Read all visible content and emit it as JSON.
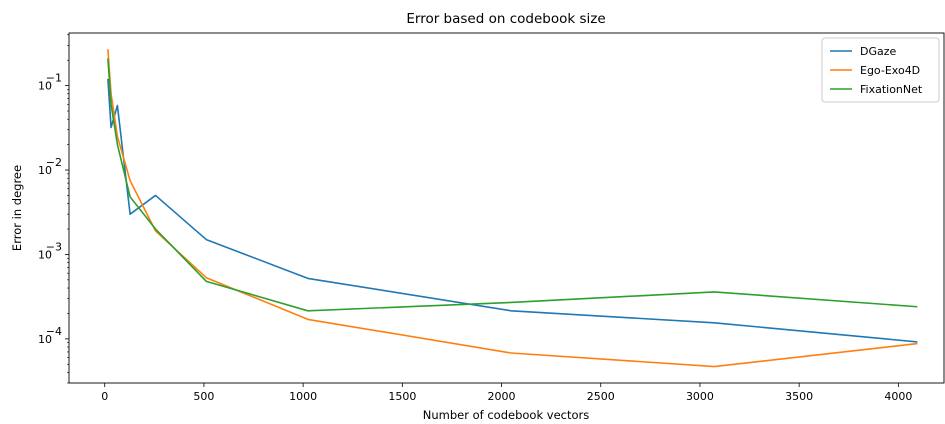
{
  "chart_data": {
    "type": "line",
    "title": "Error based on codebook size",
    "xlabel": "Number of codebook vectors",
    "ylabel": "Error in degree",
    "xlim": [
      -180,
      4230
    ],
    "ylim": [
      3e-05,
      0.42
    ],
    "yscale": "log",
    "xticks": [
      0,
      500,
      1000,
      1500,
      2000,
      2500,
      3000,
      3500,
      4000
    ],
    "xtick_labels": [
      "0",
      "500",
      "1000",
      "1500",
      "2000",
      "2500",
      "3000",
      "3500",
      "4000"
    ],
    "yticks": [
      0.0001,
      0.001,
      0.01,
      0.1
    ],
    "ytick_labels": [
      "10",
      "10",
      "10",
      "10"
    ],
    "ytick_exponents": [
      "−4",
      "−3",
      "−2",
      "−1"
    ],
    "grid": false,
    "legend": "top-right",
    "series": [
      {
        "name": "DGaze",
        "color": "#1f77b4",
        "x": [
          16,
          32,
          64,
          128,
          256,
          512,
          1024,
          2048,
          3072,
          4096
        ],
        "y": [
          0.12,
          0.032,
          0.058,
          0.003,
          0.005,
          0.0015,
          0.00052,
          0.000215,
          0.000155,
          9.2e-05
        ]
      },
      {
        "name": "Ego-Exo4D",
        "color": "#ff7f0e",
        "x": [
          16,
          32,
          64,
          128,
          256,
          512,
          1024,
          2048,
          3072,
          4096
        ],
        "y": [
          0.27,
          0.08,
          0.025,
          0.0075,
          0.0019,
          0.00053,
          0.00017,
          6.8e-05,
          4.7e-05,
          8.8e-05
        ]
      },
      {
        "name": "FixationNet",
        "color": "#2ca02c",
        "x": [
          16,
          32,
          64,
          128,
          256,
          512,
          1024,
          2048,
          3072,
          4096
        ],
        "y": [
          0.21,
          0.06,
          0.02,
          0.0048,
          0.002,
          0.00048,
          0.000215,
          0.00027,
          0.00036,
          0.00024
        ]
      }
    ]
  }
}
